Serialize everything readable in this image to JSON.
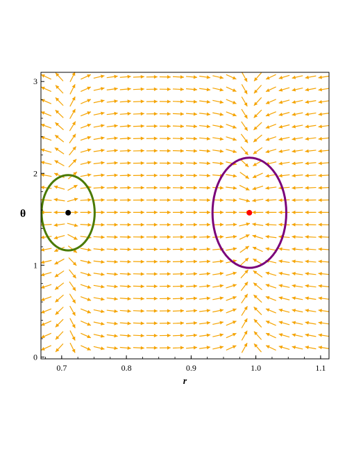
{
  "chart_data": {
    "type": "vector-field",
    "xlabel": "r",
    "ylabel": "θ",
    "xlim": [
      0.668,
      1.113
    ],
    "ylim": [
      -0.02,
      3.1
    ],
    "xticks": [
      0.7,
      0.8,
      0.9,
      1.0,
      1.1
    ],
    "xtick_labels": [
      "0.7",
      "0.8",
      "0.9",
      "1.0",
      "1.1"
    ],
    "yticks": [
      0,
      1,
      2,
      3
    ],
    "ytick_labels": [
      "0",
      "1",
      "2",
      "3"
    ],
    "grid": false,
    "arrow_color": "#f5a300",
    "field": {
      "x_range": [
        0.676,
        1.105
      ],
      "y_range": [
        0.1,
        3.05
      ],
      "nx": 22,
      "ny": 23,
      "stable_point": [
        0.71,
        1.5708
      ],
      "saddle_point": [
        0.99,
        1.5708
      ]
    },
    "equilibria": [
      {
        "r": 0.71,
        "theta": 1.5708,
        "color": "#000000"
      },
      {
        "r": 0.99,
        "theta": 1.5708,
        "color": "#ff0000"
      }
    ],
    "ellipses": [
      {
        "center": [
          0.71,
          1.5708
        ],
        "radius_r": 0.041,
        "radius_theta": 0.41,
        "color": "#4a7a00"
      },
      {
        "center": [
          0.99,
          1.5708
        ],
        "radius_r": 0.057,
        "radius_theta": 0.6,
        "color": "#7a007a"
      }
    ]
  }
}
